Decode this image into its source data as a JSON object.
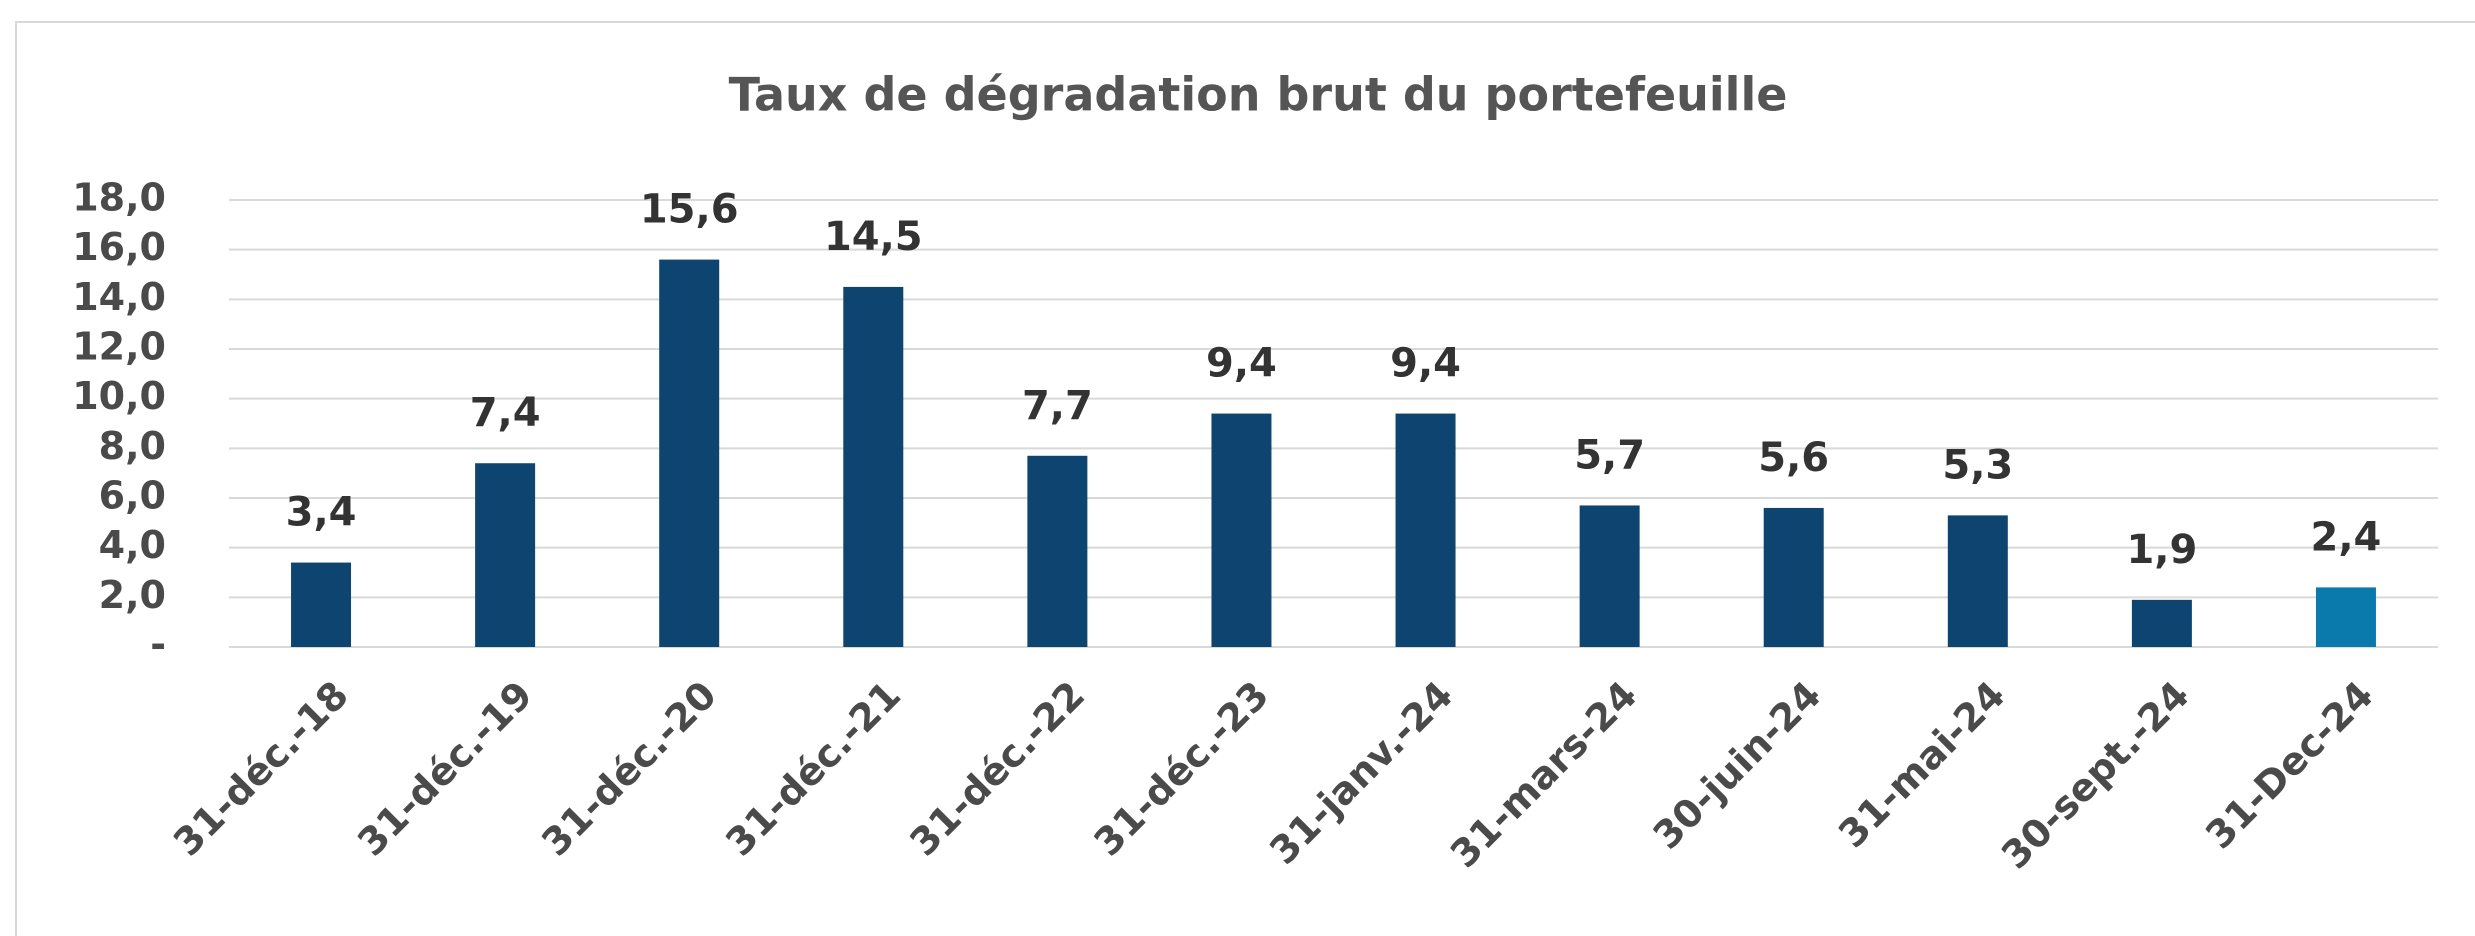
{
  "chart_data": {
    "type": "bar",
    "title": "Taux de dégradation brut du portefeuille",
    "categories": [
      "31-déc.-18",
      "31-déc.-19",
      "31-déc.-20",
      "31-déc.-21",
      "31-déc.-22",
      "31-déc.-23",
      "31-janv.-24",
      "31-mars-24",
      "30-juin-24",
      "31-mai-24",
      "30-sept.-24",
      "31-Dec-24"
    ],
    "values": [
      3.4,
      7.4,
      15.6,
      14.5,
      7.7,
      9.4,
      9.4,
      5.7,
      5.6,
      5.3,
      1.9,
      2.4
    ],
    "value_labels": [
      "3,4",
      "7,4",
      "15,6",
      "14,5",
      "7,7",
      "9,4",
      "9,4",
      "5,7",
      "5,6",
      "5,3",
      "1,9",
      "2,4"
    ],
    "colors": [
      "#0d4470",
      "#0d4470",
      "#0d4470",
      "#0d4470",
      "#0d4470",
      "#0d4470",
      "#0d4470",
      "#0d4470",
      "#0d4470",
      "#0d4470",
      "#0d4470",
      "#0a7aad"
    ],
    "ylim": [
      0,
      18
    ],
    "yticks": [
      {
        "value": 0,
        "label": "-"
      },
      {
        "value": 2,
        "label": "2,0"
      },
      {
        "value": 4,
        "label": "4,0"
      },
      {
        "value": 6,
        "label": "6,0"
      },
      {
        "value": 8,
        "label": "8,0"
      },
      {
        "value": 10,
        "label": "10,0"
      },
      {
        "value": 12,
        "label": "12,0"
      },
      {
        "value": 14,
        "label": "14,0"
      },
      {
        "value": 16,
        "label": "16,0"
      },
      {
        "value": 18,
        "label": "18,0"
      }
    ],
    "grid": true
  }
}
